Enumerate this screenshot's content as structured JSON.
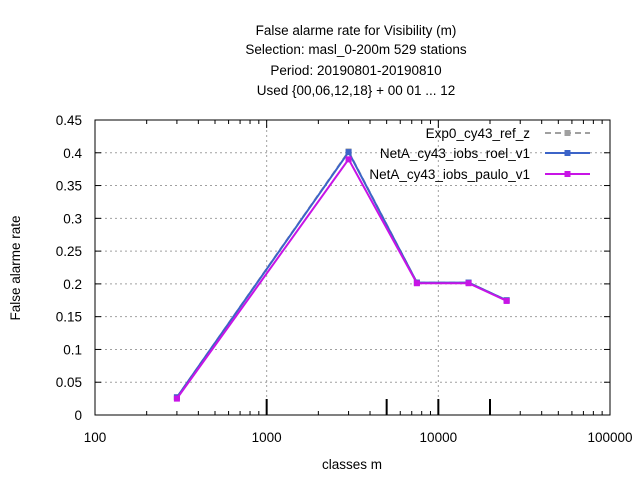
{
  "chart_data": {
    "type": "line",
    "title_lines": [
      "False alarme rate  for Visibility (m)",
      "Selection: masl_0-200m    529 stations",
      "Period: 20190801-20190810",
      "Used {00,06,12,18} + 00 01 ... 12"
    ],
    "xlabel": "classes m",
    "ylabel": "False alarme rate",
    "x_scale": "log",
    "xlim": [
      100,
      100000
    ],
    "ylim": [
      0,
      0.45
    ],
    "x_ticks": [
      100,
      1000,
      10000,
      100000
    ],
    "x_tick_labels": [
      "100",
      "1000",
      "10000",
      "100000"
    ],
    "y_ticks": [
      0,
      0.05,
      0.1,
      0.15,
      0.2,
      0.25,
      0.3,
      0.35,
      0.4,
      0.45
    ],
    "y_tick_labels": [
      "0",
      "0.05",
      "0.1",
      "0.15",
      "0.2",
      "0.25",
      "0.3",
      "0.35",
      "0.4",
      "0.45"
    ],
    "class_markers": [
      1000,
      5000,
      10000,
      20000
    ],
    "grid": true,
    "legend_position": "top-right",
    "series": [
      {
        "name": "Exp0_cy43_ref_z",
        "color": "#a0a0a0",
        "dash": "dashed",
        "marker": "square",
        "x": [
          300,
          3000,
          7500,
          15000,
          25000
        ],
        "y": [
          0.027,
          0.402,
          0.202,
          0.202,
          0.175
        ]
      },
      {
        "name": "NetA_cy43_iobs_roel_v1",
        "color": "#3c64c8",
        "dash": "solid",
        "marker": "square",
        "x": [
          300,
          3000,
          7500,
          15000,
          25000
        ],
        "y": [
          0.027,
          0.401,
          0.202,
          0.202,
          0.175
        ]
      },
      {
        "name": "NetA_cy43_iobs_paulo_v1",
        "color": "#c814e6",
        "dash": "solid",
        "marker": "square",
        "x": [
          300,
          3000,
          7500,
          15000,
          25000
        ],
        "y": [
          0.025,
          0.39,
          0.201,
          0.201,
          0.174
        ]
      }
    ]
  }
}
